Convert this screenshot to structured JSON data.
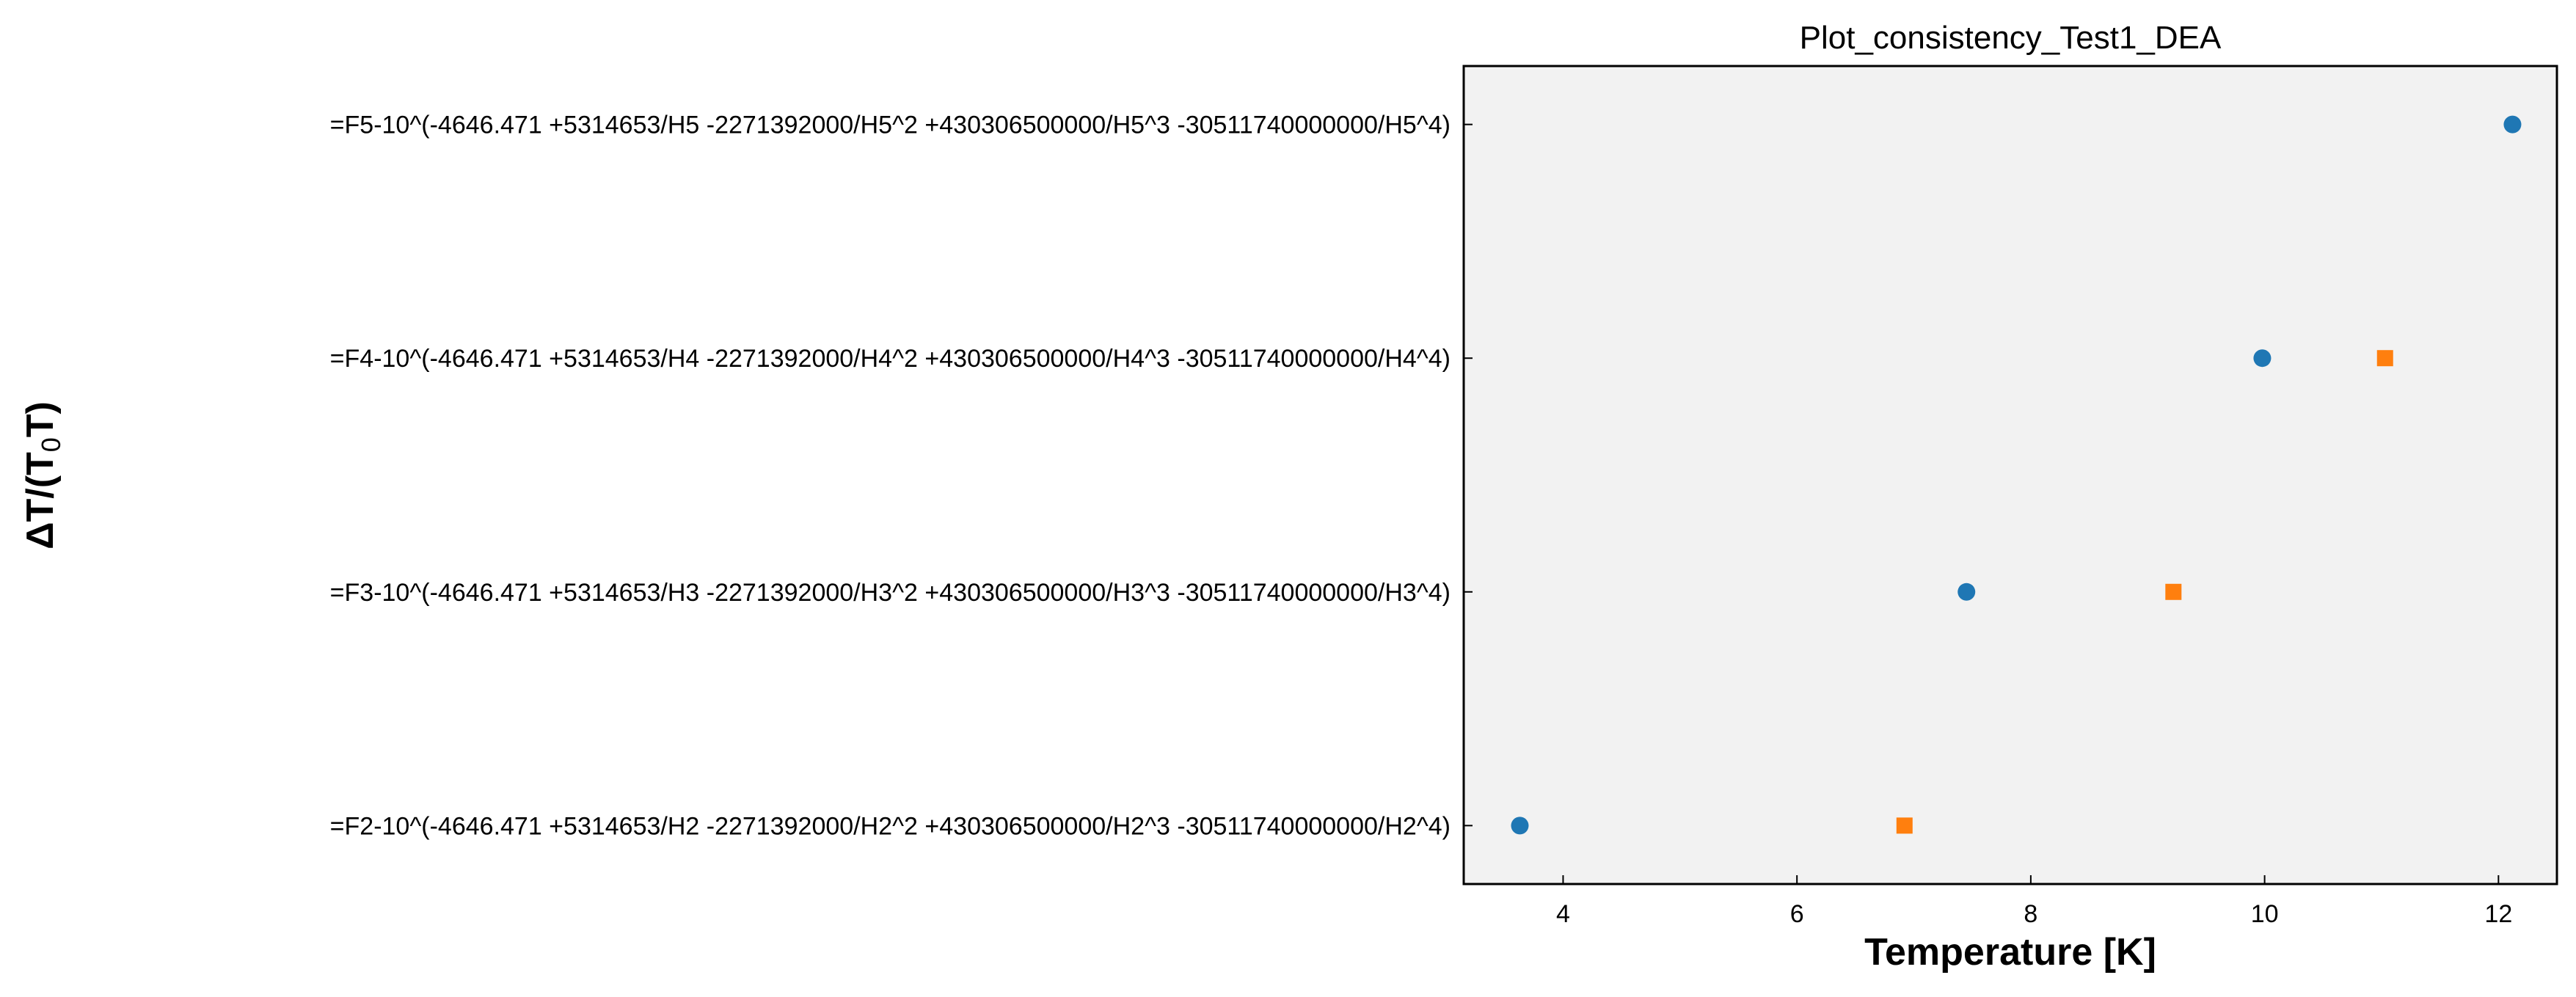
{
  "chart_data": {
    "type": "scatter",
    "title": "Plot_consistency_Test1_DEA",
    "xlabel": "Temperature [K]",
    "ylabel_main": "ΔT/(T",
    "ylabel_sub": "0",
    "ylabel_end": "T)",
    "xlim": [
      3.15,
      12.5
    ],
    "x_ticks": [
      4,
      6,
      8,
      10,
      12
    ],
    "y_categories": [
      "=F2-10^(-4646.471 +5314653/H2 -2271392000/H2^2 +430306500000/H2^3 -30511740000000/H2^4)",
      "=F3-10^(-4646.471 +5314653/H3 -2271392000/H3^2 +430306500000/H3^3 -30511740000000/H3^4)",
      "=F4-10^(-4646.471 +5314653/H4 -2271392000/H4^2 +430306500000/H4^3 -30511740000000/H4^4)",
      "=F5-10^(-4646.471 +5314653/H5 -2271392000/H5^2 +430306500000/H5^3 -30511740000000/H5^4)"
    ],
    "grid": false,
    "plot_background": "#f2f2f2",
    "series": [
      {
        "marker": "circle",
        "color": "#1f77b4",
        "points": [
          {
            "x": 3.63,
            "y_index": 0
          },
          {
            "x": 7.45,
            "y_index": 1
          },
          {
            "x": 9.98,
            "y_index": 2
          },
          {
            "x": 12.12,
            "y_index": 3
          }
        ]
      },
      {
        "marker": "square",
        "color": "#ff7f0e",
        "points": [
          {
            "x": 6.92,
            "y_index": 0
          },
          {
            "x": 9.22,
            "y_index": 1
          },
          {
            "x": 11.03,
            "y_index": 2
          }
        ]
      }
    ]
  }
}
